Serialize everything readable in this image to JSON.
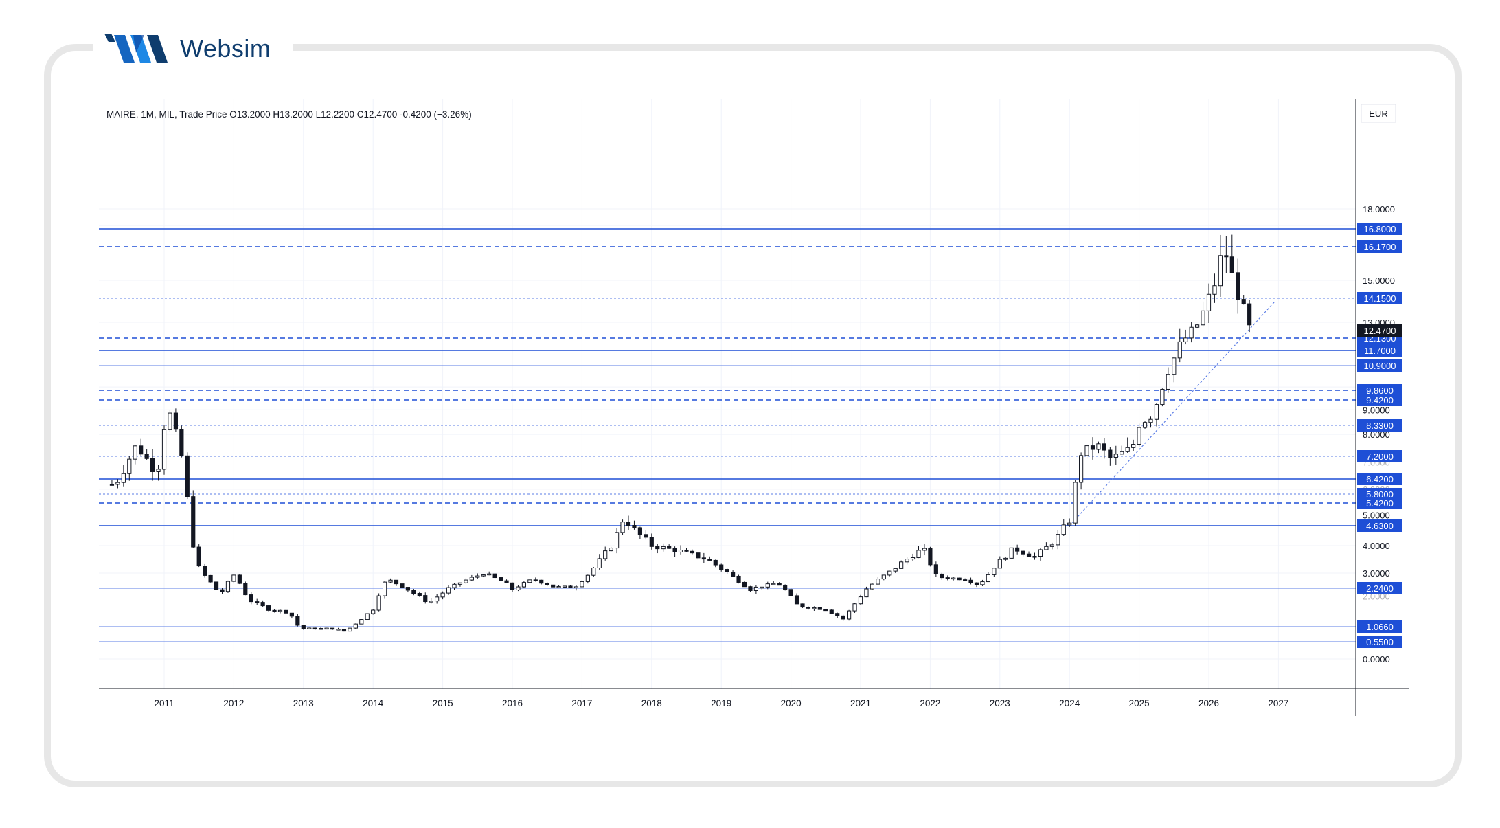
{
  "brand": {
    "name": "Websim",
    "colors": {
      "primary": "#1565c0",
      "dark": "#0f3d6e"
    }
  },
  "chart_data": {
    "type": "candlestick",
    "title": "MAIRE, 1M, MIL, Trade Price",
    "ohlc": {
      "open_label": "O13.2000",
      "high_label": "H13.2000",
      "low_label": "L12.2200",
      "close_label": "C12.4700",
      "change_label": "-0.4200 (−3.26%)"
    },
    "currency": "EUR",
    "last_price": "12.4700",
    "ylim": [
      -0.7,
      19.3
    ],
    "price_ticks": [
      "0.0000",
      "2.0000",
      "3.0000",
      "4.0000",
      "5.0000",
      "6.0000",
      "7.0000",
      "8.0000",
      "9.0000",
      "10.0000",
      "13.0000",
      "15.0000",
      "17.0000",
      "18.0000"
    ],
    "x_labels": [
      "2011",
      "2012",
      "2013",
      "2014",
      "2015",
      "2016",
      "2017",
      "2018",
      "2019",
      "2020",
      "2021",
      "2022",
      "2023",
      "2024",
      "2025",
      "2026",
      "2027"
    ],
    "levels": [
      {
        "value": 16.8,
        "label": "16.8000",
        "style": "solid"
      },
      {
        "value": 16.17,
        "label": "16.1700",
        "style": "dashed"
      },
      {
        "value": 14.15,
        "label": "14.1500",
        "style": "dotted"
      },
      {
        "value": 12.13,
        "label": "12.1300",
        "style": "dashed"
      },
      {
        "value": 11.7,
        "label": "11.7000",
        "style": "solid"
      },
      {
        "value": 10.9,
        "label": "10.9000",
        "style": "thin"
      },
      {
        "value": 9.86,
        "label": "9.8600",
        "style": "dashed"
      },
      {
        "value": 9.42,
        "label": "9.4200",
        "style": "dashed"
      },
      {
        "value": 8.33,
        "label": "8.3300",
        "style": "dotted"
      },
      {
        "value": 7.2,
        "label": "7.2000",
        "style": "dotted"
      },
      {
        "value": 6.42,
        "label": "6.4200",
        "style": "solid"
      },
      {
        "value": 5.8,
        "label": "5.8000",
        "style": "dotted"
      },
      {
        "value": 5.42,
        "label": "5.4200",
        "style": "dashed"
      },
      {
        "value": 4.63,
        "label": "4.6300",
        "style": "solid"
      },
      {
        "value": 2.24,
        "label": "2.2400",
        "style": "thin"
      },
      {
        "value": 1.066,
        "label": "1.0660",
        "style": "thin"
      },
      {
        "value": 0.55,
        "label": "0.5500",
        "style": "thin"
      }
    ],
    "trendline": {
      "from": {
        "year": 2024.0,
        "value": 4.63
      },
      "to": {
        "year": 2026.95,
        "value": 14.0
      }
    },
    "monthly_close_anchors": [
      [
        2010.3,
        6.2
      ],
      [
        2010.6,
        7.6
      ],
      [
        2010.9,
        6.6
      ],
      [
        2011.0,
        8.3
      ],
      [
        2011.05,
        9.1
      ],
      [
        2011.25,
        7.2
      ],
      [
        2011.45,
        3.4
      ],
      [
        2011.6,
        2.8
      ],
      [
        2011.8,
        2.0
      ],
      [
        2012.0,
        2.9
      ],
      [
        2012.2,
        1.9
      ],
      [
        2012.5,
        1.6
      ],
      [
        2012.8,
        1.5
      ],
      [
        2012.95,
        1.0
      ],
      [
        2013.3,
        1.0
      ],
      [
        2013.45,
        1.0
      ],
      [
        2013.6,
        0.9
      ],
      [
        2014.0,
        1.6
      ],
      [
        2014.2,
        2.7
      ],
      [
        2014.5,
        2.2
      ],
      [
        2014.8,
        1.8
      ],
      [
        2015.0,
        2.1
      ],
      [
        2015.3,
        2.6
      ],
      [
        2015.6,
        3.0
      ],
      [
        2015.9,
        2.5
      ],
      [
        2016.0,
        2.2
      ],
      [
        2016.3,
        2.7
      ],
      [
        2016.6,
        2.3
      ],
      [
        2016.9,
        2.3
      ],
      [
        2017.2,
        3.3
      ],
      [
        2017.45,
        4.1
      ],
      [
        2017.6,
        4.9
      ],
      [
        2017.75,
        4.5
      ],
      [
        2018.0,
        4.0
      ],
      [
        2018.4,
        3.8
      ],
      [
        2018.8,
        3.5
      ],
      [
        2019.1,
        3.0
      ],
      [
        2019.4,
        2.2
      ],
      [
        2019.8,
        2.5
      ],
      [
        2020.1,
        1.7
      ],
      [
        2020.5,
        1.6
      ],
      [
        2020.75,
        1.3
      ],
      [
        2021.0,
        2.0
      ],
      [
        2021.3,
        2.8
      ],
      [
        2021.6,
        3.4
      ],
      [
        2021.9,
        3.9
      ],
      [
        2022.1,
        2.8
      ],
      [
        2022.5,
        2.7
      ],
      [
        2022.7,
        2.4
      ],
      [
        2022.9,
        3.2
      ],
      [
        2023.2,
        3.9
      ],
      [
        2023.5,
        3.6
      ],
      [
        2023.8,
        4.2
      ],
      [
        2024.0,
        4.8
      ],
      [
        2024.15,
        7.3
      ],
      [
        2024.4,
        7.6
      ],
      [
        2024.6,
        7.1
      ],
      [
        2024.9,
        7.5
      ],
      [
        2025.0,
        8.4
      ],
      [
        2025.2,
        8.8
      ],
      [
        2025.3,
        9.8
      ],
      [
        2025.45,
        11.0
      ],
      [
        2025.6,
        11.9
      ],
      [
        2025.8,
        12.6
      ],
      [
        2025.95,
        13.7
      ],
      [
        2026.1,
        15.0
      ],
      [
        2026.22,
        16.2
      ],
      [
        2026.3,
        15.4
      ],
      [
        2026.45,
        14.1
      ],
      [
        2026.6,
        12.47
      ]
    ]
  }
}
